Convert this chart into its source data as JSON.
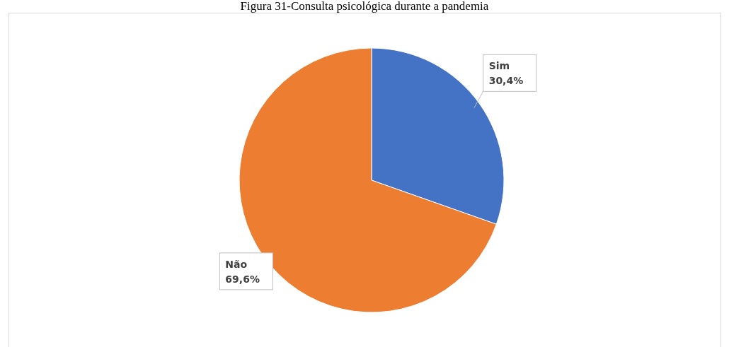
{
  "chart_data": {
    "type": "pie",
    "title": "Figura 31-Consulta psicológica durante a pandemia",
    "categories": [
      "Sim",
      "Não"
    ],
    "values": [
      30.4,
      69.6
    ],
    "colors": [
      "#4472c4",
      "#ed7d31"
    ],
    "value_labels": [
      "30,4%",
      "69,6%"
    ]
  }
}
